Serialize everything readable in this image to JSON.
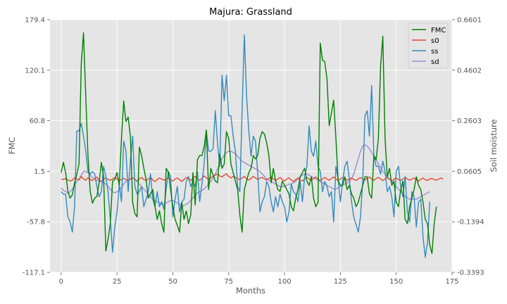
{
  "chart_data": {
    "type": "line",
    "title": "Majura: Grassland",
    "xlabel": "Months",
    "ylabel": "FMC",
    "ylabel_right": "Soil moisture",
    "xlim": [
      -5,
      175
    ],
    "ylim": [
      -117.1,
      179.4
    ],
    "ylim_right": [
      -0.3393,
      0.6601
    ],
    "x_ticks": [
      "0",
      "25",
      "50",
      "75",
      "100",
      "125",
      "150",
      "175"
    ],
    "y_ticks": [
      "179.4",
      "120.1",
      "60.8",
      "1.5",
      "-57.8",
      "-117.1"
    ],
    "y_ticks_right": [
      "0.6601",
      "0.4602",
      "0.2603",
      "0.0605",
      "-0.1394",
      "-0.3393"
    ],
    "grid": true,
    "legend_position": "top-right",
    "colors": {
      "FMC": "#008000",
      "s0": "#e24a33",
      "ss": "#348abd",
      "sd": "#988ed5",
      "plot_bg": "#e5e5e5",
      "grid": "#ffffff"
    },
    "series": [
      {
        "name": "FMC",
        "axis": "left",
        "x_start": 0,
        "values": [
          0,
          12,
          0,
          -22,
          -30,
          -26,
          -12,
          -2,
          10,
          128,
          164,
          90,
          20,
          -22,
          -36,
          -30,
          -28,
          -12,
          12,
          -5,
          -92,
          -78,
          -60,
          -10,
          -8,
          0,
          -15,
          40,
          84,
          60,
          65,
          42,
          -35,
          -48,
          -52,
          30,
          20,
          5,
          -8,
          -30,
          -25,
          -20,
          -40,
          -55,
          -45,
          -60,
          -70,
          5,
          0,
          -20,
          -40,
          -55,
          -62,
          -70,
          -35,
          -55,
          -45,
          -60,
          -50,
          0,
          -38,
          15,
          20,
          20,
          30,
          50,
          -20,
          5,
          -3,
          -10,
          -12,
          22,
          5,
          10,
          48,
          40,
          10,
          0,
          -10,
          -20,
          -50,
          -70,
          -20,
          -10,
          0,
          5,
          20,
          16,
          20,
          40,
          48,
          45,
          35,
          20,
          -12,
          5,
          -10,
          -20,
          -22,
          -10,
          -15,
          -20,
          -25,
          -40,
          -45,
          -30,
          -20,
          -5,
          0,
          5,
          -10,
          -15,
          -5,
          -30,
          -40,
          -35,
          152,
          132,
          130,
          110,
          55,
          70,
          85,
          40,
          -10,
          -15,
          -15,
          -5,
          -20,
          -15,
          -25,
          -30,
          -40,
          -35,
          -25,
          -15,
          -5,
          -5,
          -25,
          -30,
          20,
          15,
          40,
          125,
          160,
          40,
          -5,
          5,
          -15,
          -10,
          -35,
          -40,
          -20,
          -10,
          -55,
          -60,
          -40,
          -30,
          -20,
          -5,
          -15,
          -20,
          -35,
          -55,
          -60,
          -85,
          -95,
          -60,
          -40
        ]
      },
      {
        "name": "s0",
        "axis": "right",
        "x_start": 0,
        "values": [
          0.03,
          0.028,
          0.032,
          0.026,
          0.022,
          0.025,
          0.035,
          0.03,
          0.026,
          0.04,
          0.03,
          0.025,
          0.035,
          0.028,
          0.024,
          0.03,
          0.038,
          0.026,
          0.02,
          0.03,
          0.034,
          0.028,
          0.025,
          0.03,
          0.036,
          0.03,
          0.024,
          0.028,
          0.033,
          0.027,
          0.025,
          0.03,
          0.035,
          0.028,
          0.022,
          0.03,
          0.036,
          0.027,
          0.024,
          0.03,
          0.038,
          0.026,
          0.02,
          0.028,
          0.034,
          0.03,
          0.025,
          0.03,
          0.036,
          0.028,
          0.022,
          0.03,
          0.034,
          0.027,
          0.02,
          0.028,
          0.036,
          0.03,
          0.025,
          0.032,
          0.04,
          0.03,
          0.025,
          0.032,
          0.042,
          0.034,
          0.028,
          0.035,
          0.04,
          0.045,
          0.05,
          0.042,
          0.038,
          0.045,
          0.05,
          0.04,
          0.034,
          0.04,
          0.036,
          0.03,
          0.028,
          0.034,
          0.04,
          0.03,
          0.026,
          0.032,
          0.04,
          0.034,
          0.028,
          0.034,
          0.036,
          0.03,
          0.026,
          0.032,
          0.038,
          0.03,
          0.024,
          0.03,
          0.036,
          0.028,
          0.022,
          0.03,
          0.034,
          0.026,
          0.02,
          0.028,
          0.034,
          0.026,
          0.022,
          0.03,
          0.036,
          0.03,
          0.025,
          0.032,
          0.038,
          0.03,
          0.024,
          0.03,
          0.036,
          0.03,
          0.025,
          0.032,
          0.038,
          0.03,
          0.024,
          0.03,
          0.036,
          0.03,
          0.025,
          0.03,
          0.034,
          0.028,
          0.024,
          0.03,
          0.036,
          0.03,
          0.026,
          0.032,
          0.038,
          0.03,
          0.025,
          0.032,
          0.036,
          0.03,
          0.024,
          0.03,
          0.036,
          0.028,
          0.022,
          0.03,
          0.034,
          0.028,
          0.024,
          0.03,
          0.036,
          0.03,
          0.025,
          0.03,
          0.034,
          0.028,
          0.022,
          0.028,
          0.034,
          0.027,
          0.024,
          0.03,
          0.032,
          0.028,
          0.025,
          0.03,
          0.034,
          0.03
        ]
      },
      {
        "name": "ss",
        "axis": "right",
        "x_start": 0,
        "values": [
          -0.02,
          -0.03,
          -0.03,
          -0.12,
          -0.14,
          -0.18,
          -0.08,
          0.22,
          0.22,
          0.25,
          0.2,
          0.14,
          0.06,
          0.05,
          0.06,
          0.05,
          0.0,
          -0.04,
          -0.02,
          0.08,
          0.04,
          -0.02,
          -0.13,
          -0.26,
          -0.16,
          -0.1,
          0.01,
          -0.06,
          0.18,
          0.14,
          -0.02,
          0.1,
          0.2,
          0.0,
          -0.03,
          -0.02,
          0.0,
          -0.08,
          -0.05,
          -0.02,
          0.05,
          -0.05,
          -0.08,
          -0.02,
          -0.08,
          -0.06,
          -0.09,
          -0.01,
          0.06,
          0.04,
          -0.12,
          -0.05,
          0.0,
          -0.1,
          -0.06,
          -0.05,
          0.02,
          0.04,
          0.0,
          0.02,
          0.0,
          0.06,
          -0.06,
          0.01,
          0.09,
          0.22,
          0.14,
          0.14,
          0.15,
          0.3,
          0.17,
          0.08,
          0.44,
          0.34,
          0.44,
          0.28,
          0.28,
          0.2,
          0.14,
          0.0,
          -0.02,
          0.3,
          0.6,
          0.36,
          0.22,
          0.12,
          0.2,
          0.18,
          0.05,
          -0.1,
          -0.06,
          -0.04,
          0.02,
          0.0,
          -0.06,
          -0.1,
          -0.04,
          -0.08,
          -0.03,
          -0.06,
          -0.08,
          -0.14,
          -0.1,
          0.01,
          -0.02,
          -0.03,
          -0.06,
          0.02,
          -0.06,
          0.04,
          0.08,
          0.24,
          0.14,
          0.12,
          0.18,
          0.08,
          0.06,
          -0.02,
          0.02,
          0.0,
          -0.04,
          -0.02,
          -0.14,
          0.08,
          0.03,
          -0.06,
          0.02,
          0.08,
          0.1,
          0.03,
          -0.06,
          -0.12,
          -0.15,
          -0.18,
          -0.12,
          0.02,
          0.28,
          0.3,
          0.2,
          0.4,
          0.12,
          0.08,
          0.08,
          0.05,
          0.1,
          0.06,
          -0.02,
          0.0,
          -0.04,
          -0.12,
          0.06,
          0.08,
          0.0,
          -0.04,
          0.04,
          -0.1,
          -0.14,
          -0.02,
          -0.04,
          -0.16,
          -0.06,
          -0.05,
          -0.2,
          -0.28,
          -0.22,
          -0.06
        ]
      },
      {
        "name": "sd",
        "axis": "right",
        "x_start": 0,
        "values": [
          -0.005,
          -0.015,
          -0.02,
          -0.025,
          -0.02,
          -0.01,
          0.005,
          0.02,
          0.03,
          0.045,
          0.06,
          0.06,
          0.055,
          0.045,
          0.035,
          0.03,
          0.025,
          0.02,
          0.02,
          0.015,
          0.01,
          0.0,
          -0.01,
          -0.02,
          -0.025,
          -0.02,
          -0.015,
          -0.005,
          0.01,
          0.02,
          0.025,
          0.03,
          0.035,
          0.03,
          0.02,
          0.01,
          0.0,
          -0.01,
          -0.02,
          -0.03,
          -0.04,
          -0.05,
          -0.055,
          -0.06,
          -0.065,
          -0.07,
          -0.07,
          -0.065,
          -0.06,
          -0.055,
          -0.055,
          -0.06,
          -0.065,
          -0.07,
          -0.075,
          -0.075,
          -0.07,
          -0.065,
          -0.055,
          -0.045,
          -0.035,
          -0.025,
          -0.02,
          -0.015,
          -0.01,
          0.0,
          0.01,
          0.02,
          0.035,
          0.05,
          0.07,
          0.09,
          0.11,
          0.125,
          0.135,
          0.14,
          0.14,
          0.135,
          0.13,
          0.12,
          0.11,
          0.1,
          0.095,
          0.09,
          0.085,
          0.08,
          0.075,
          0.07,
          0.065,
          0.06,
          0.05,
          0.04,
          0.03,
          0.025,
          0.02,
          0.015,
          0.01,
          0.005,
          0.0,
          0.0,
          0.0,
          0.005,
          0.01,
          0.01,
          0.015,
          0.02,
          0.03,
          0.04,
          0.045,
          0.05,
          0.05,
          0.045,
          0.04,
          0.035,
          0.03,
          0.025,
          0.02,
          0.015,
          0.01,
          0.005,
          0.0,
          -0.005,
          -0.01,
          -0.01,
          -0.005,
          0.0,
          0.005,
          0.01,
          0.015,
          0.02,
          0.03,
          0.05,
          0.08,
          0.11,
          0.14,
          0.16,
          0.165,
          0.16,
          0.15,
          0.135,
          0.12,
          0.105,
          0.09,
          0.075,
          0.06,
          0.05,
          0.04,
          0.03,
          0.02,
          0.01,
          0.0,
          -0.01,
          -0.02,
          -0.03,
          -0.04,
          -0.045,
          -0.05,
          -0.05,
          -0.05,
          -0.05,
          -0.045,
          -0.04,
          -0.035,
          -0.03,
          -0.025,
          -0.02
        ]
      }
    ]
  }
}
